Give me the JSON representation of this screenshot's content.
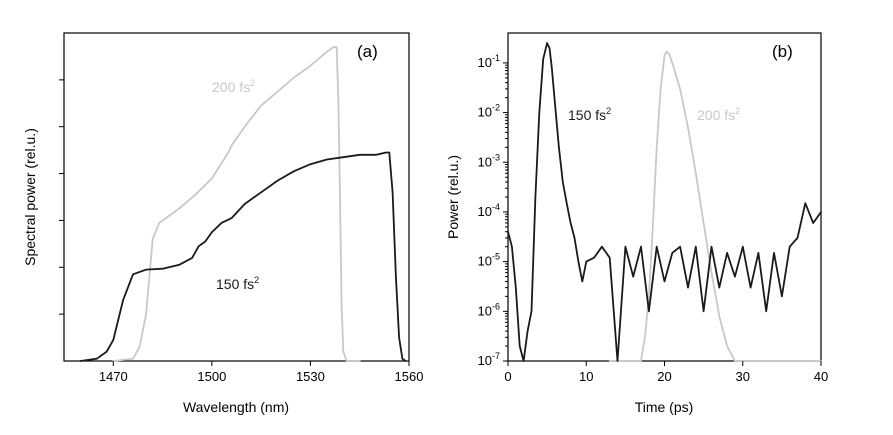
{
  "chart_data": [
    {
      "type": "line",
      "panel_label": "(a)",
      "xlabel": "Wavelength (nm)",
      "ylabel": "Spectral power (rel.u.)",
      "xlim": [
        1455,
        1560
      ],
      "ylim": [
        0,
        7
      ],
      "xticks": [
        1470,
        1500,
        1530,
        1560
      ],
      "xtick_labels": [
        "1470",
        "1500",
        "1530",
        "1560"
      ],
      "yticks": [
        1,
        2,
        3,
        4,
        5,
        6
      ],
      "ytick_labels": [],
      "series": [
        {
          "name": "200 fs2",
          "label_text": "200 fs",
          "label_sup": "2",
          "color": "#c8c8c8",
          "x": [
            1470,
            1476,
            1478,
            1480,
            1482,
            1484,
            1486,
            1490,
            1495,
            1500,
            1505,
            1506,
            1510,
            1515,
            1520,
            1525,
            1530,
            1535,
            1537,
            1538,
            1538.5,
            1539,
            1539.5,
            1540,
            1541,
            1545
          ],
          "y": [
            0.0,
            0.05,
            0.3,
            1.0,
            2.6,
            2.95,
            3.05,
            3.25,
            3.55,
            3.9,
            4.45,
            4.6,
            5.0,
            5.45,
            5.75,
            6.05,
            6.3,
            6.6,
            6.7,
            6.7,
            5.5,
            3.5,
            1.2,
            0.2,
            0.0,
            0.0
          ]
        },
        {
          "name": "150 fs2",
          "label_text": "150 fs",
          "label_sup": "2",
          "color": "#1a1a1a",
          "x": [
            1460,
            1465,
            1468,
            1470,
            1473,
            1476,
            1480,
            1485,
            1490,
            1494,
            1496,
            1498,
            1500,
            1503,
            1506,
            1510,
            1515,
            1520,
            1525,
            1530,
            1535,
            1540,
            1545,
            1550,
            1553,
            1554,
            1555,
            1556,
            1557,
            1558,
            1559
          ],
          "y": [
            0.0,
            0.05,
            0.2,
            0.45,
            1.3,
            1.85,
            1.95,
            1.97,
            2.05,
            2.2,
            2.45,
            2.55,
            2.75,
            2.95,
            3.05,
            3.35,
            3.6,
            3.85,
            4.05,
            4.2,
            4.3,
            4.35,
            4.4,
            4.4,
            4.45,
            4.45,
            3.6,
            1.8,
            0.5,
            0.05,
            0.0
          ]
        }
      ]
    },
    {
      "type": "line",
      "panel_label": "(b)",
      "xlabel": "Time (ps)",
      "ylabel": "Power (rel.u.)",
      "xlim": [
        0,
        40
      ],
      "ylim": [
        1e-07,
        0.4
      ],
      "yscale": "log",
      "xticks": [
        0,
        10,
        20,
        30,
        40
      ],
      "xtick_labels": [
        "0",
        "10",
        "20",
        "30",
        "40"
      ],
      "yticks_exp": [
        -7,
        -6,
        -5,
        -4,
        -3,
        -2,
        -1
      ],
      "ytick_base": "10",
      "series": [
        {
          "name": "150 fs2",
          "label_text": "150 fs",
          "label_sup": "2",
          "color": "#1a1a1a",
          "x": [
            0,
            0.5,
            1,
            1.5,
            2,
            2.5,
            3,
            3.5,
            4,
            4.5,
            5,
            5.3,
            5.6,
            6,
            6.5,
            7,
            7.5,
            8,
            8.5,
            9,
            9.5,
            10,
            11,
            12,
            13,
            14,
            15,
            16,
            17,
            18,
            19,
            20,
            21,
            22,
            23,
            24,
            25,
            26,
            27,
            28,
            29,
            30,
            31,
            32,
            33,
            34,
            35,
            36,
            37,
            38,
            39,
            40
          ],
          "y": [
            4e-05,
            2e-05,
            3e-06,
            2e-07,
            1e-07,
            4e-07,
            1e-06,
            0.0002,
            0.01,
            0.12,
            0.25,
            0.2,
            0.08,
            0.015,
            0.002,
            0.0004,
            0.00015,
            6e-05,
            3e-05,
            1e-05,
            4e-06,
            1e-05,
            1.2e-05,
            2e-05,
            1.2e-05,
            1e-07,
            2e-05,
            5e-06,
            2e-05,
            1e-06,
            2e-05,
            4e-06,
            1.5e-05,
            2e-05,
            3e-06,
            2e-05,
            1e-06,
            2e-05,
            3e-06,
            1.5e-05,
            5e-06,
            2e-05,
            3e-06,
            1.5e-05,
            1e-06,
            1.5e-05,
            2e-06,
            2e-05,
            3e-05,
            0.00015,
            6e-05,
            0.0001
          ]
        },
        {
          "name": "200 fs2",
          "label_text": "200 fs",
          "label_sup": "2",
          "color": "#c8c8c8",
          "x": [
            13,
            15,
            17,
            17.5,
            18,
            18.5,
            19,
            19.5,
            20,
            20.3,
            20.6,
            21,
            22,
            23,
            24,
            25,
            26,
            27,
            28,
            29,
            30,
            32,
            35,
            38,
            40
          ],
          "y": [
            1e-07,
            1e-07,
            1e-07,
            3e-07,
            2e-06,
            5e-05,
            0.002,
            0.03,
            0.14,
            0.17,
            0.15,
            0.1,
            0.03,
            0.005,
            0.0006,
            6e-05,
            6e-06,
            8e-07,
            2e-07,
            1e-07,
            1e-07,
            1e-07,
            1e-07,
            1e-07,
            1e-07
          ]
        }
      ]
    }
  ]
}
